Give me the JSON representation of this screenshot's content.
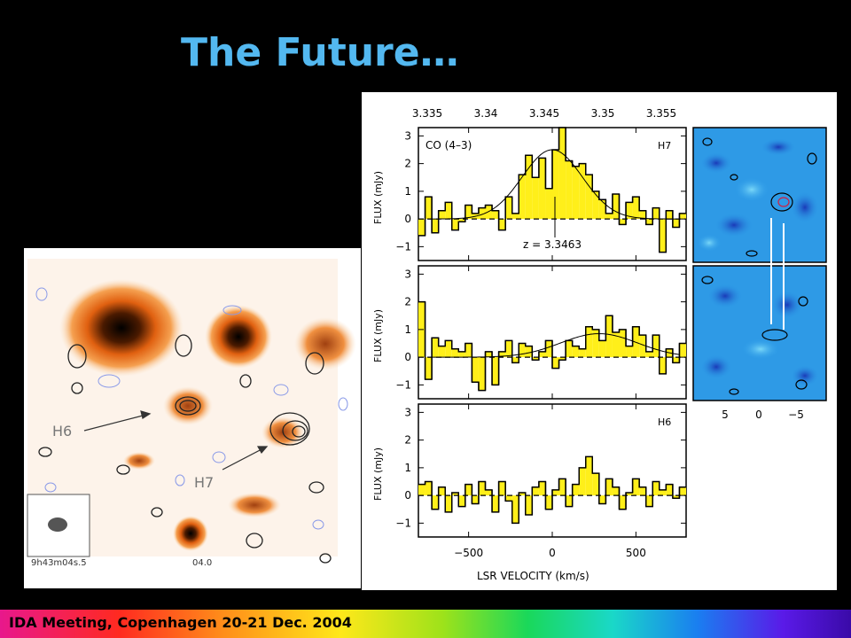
{
  "slide": {
    "title": "The Future…",
    "footer": "IDA Meeting, Copenhagen 20-21 Dec. 2004"
  },
  "map_labels": {
    "source_h6": "H6",
    "source_h7": "H7",
    "ra_left": "9h43m04s.5",
    "ra_right": "04.0"
  },
  "chart_data": [
    {
      "type": "bar",
      "panel": "H7",
      "annotation": "CO (4–3)",
      "label": "H7",
      "redshift_label": "z = 3.3463",
      "top_axis_ticks": [
        "3.335",
        "3.34",
        "3.345",
        "3.35",
        "3.355"
      ],
      "ylabel": "FLUX (mJy)",
      "ylim": [
        -1.5,
        3.3
      ],
      "yticks": [
        "3",
        "2",
        "1",
        "0",
        "−1"
      ],
      "xlim": [
        -800,
        800
      ],
      "x": [
        -800,
        -760,
        -720,
        -680,
        -640,
        -600,
        -560,
        -520,
        -480,
        -440,
        -400,
        -360,
        -320,
        -280,
        -240,
        -200,
        -160,
        -120,
        -80,
        -40,
        0,
        40,
        80,
        120,
        160,
        200,
        240,
        280,
        320,
        360,
        400,
        440,
        480,
        520,
        560,
        600,
        640,
        680,
        720,
        760
      ],
      "values": [
        -0.6,
        0.8,
        -0.5,
        0.3,
        0.6,
        -0.4,
        -0.1,
        0.5,
        0.2,
        0.4,
        0.5,
        0.3,
        -0.4,
        0.8,
        0.2,
        1.6,
        2.3,
        1.5,
        2.2,
        1.1,
        2.5,
        3.3,
        2.1,
        1.9,
        2.0,
        1.6,
        1.0,
        0.7,
        0.2,
        0.9,
        -0.2,
        0.6,
        0.8,
        0.3,
        -0.2,
        0.4,
        -1.2,
        0.3,
        -0.3,
        0.2
      ],
      "fit": {
        "peak": 2.5,
        "center": 0,
        "sigma": 180
      }
    },
    {
      "type": "bar",
      "panel": "H7 (lower)",
      "ylabel": "FLUX (mJy)",
      "ylim": [
        -1.5,
        3.3
      ],
      "yticks": [
        "3",
        "2",
        "1",
        "0",
        "−1"
      ],
      "xlim": [
        -800,
        800
      ],
      "x": [
        -800,
        -760,
        -720,
        -680,
        -640,
        -600,
        -560,
        -520,
        -480,
        -440,
        -400,
        -360,
        -320,
        -280,
        -240,
        -200,
        -160,
        -120,
        -80,
        -40,
        0,
        40,
        80,
        120,
        160,
        200,
        240,
        280,
        320,
        360,
        400,
        440,
        480,
        520,
        560,
        600,
        640,
        680,
        720,
        760
      ],
      "values": [
        2.0,
        -0.8,
        0.7,
        0.4,
        0.6,
        0.3,
        0.2,
        0.5,
        -0.9,
        -1.2,
        0.2,
        -1.0,
        0.2,
        0.6,
        -0.2,
        0.5,
        0.4,
        -0.1,
        0.2,
        0.6,
        -0.4,
        -0.1,
        0.6,
        0.4,
        0.3,
        1.1,
        1.0,
        0.6,
        1.5,
        0.9,
        1.0,
        0.4,
        1.1,
        0.8,
        0.2,
        0.8,
        -0.6,
        0.3,
        -0.2,
        0.5
      ],
      "fit": {
        "peak": 0.85,
        "center": 280,
        "sigma": 230
      }
    },
    {
      "type": "bar",
      "panel": "H6",
      "label": "H6",
      "ylabel": "FLUX (mJy)",
      "xlabel": "LSR VELOCITY (km/s)",
      "ylim": [
        -1.5,
        3.3
      ],
      "yticks": [
        "3",
        "2",
        "1",
        "0",
        "−1"
      ],
      "xticks": [
        "−500",
        "0",
        "500"
      ],
      "xlim": [
        -800,
        800
      ],
      "x": [
        -800,
        -760,
        -720,
        -680,
        -640,
        -600,
        -560,
        -520,
        -480,
        -440,
        -400,
        -360,
        -320,
        -280,
        -240,
        -200,
        -160,
        -120,
        -80,
        -40,
        0,
        40,
        80,
        120,
        160,
        200,
        240,
        280,
        320,
        360,
        400,
        440,
        480,
        520,
        560,
        600,
        640,
        680,
        720,
        760
      ],
      "values": [
        0.4,
        0.5,
        -0.5,
        0.3,
        -0.6,
        0.1,
        -0.4,
        0.4,
        -0.3,
        0.5,
        0.2,
        -0.6,
        0.5,
        -0.2,
        -1.0,
        0.1,
        -0.7,
        0.3,
        0.5,
        -0.5,
        0.2,
        0.6,
        -0.4,
        0.4,
        1.0,
        1.4,
        0.8,
        -0.3,
        0.6,
        0.3,
        -0.5,
        0.1,
        0.6,
        0.3,
        -0.4,
        0.5,
        0.2,
        0.4,
        -0.1,
        0.3
      ],
      "fit": null
    }
  ],
  "contour_axis": {
    "ticks": [
      "5",
      "0",
      "−5"
    ]
  }
}
